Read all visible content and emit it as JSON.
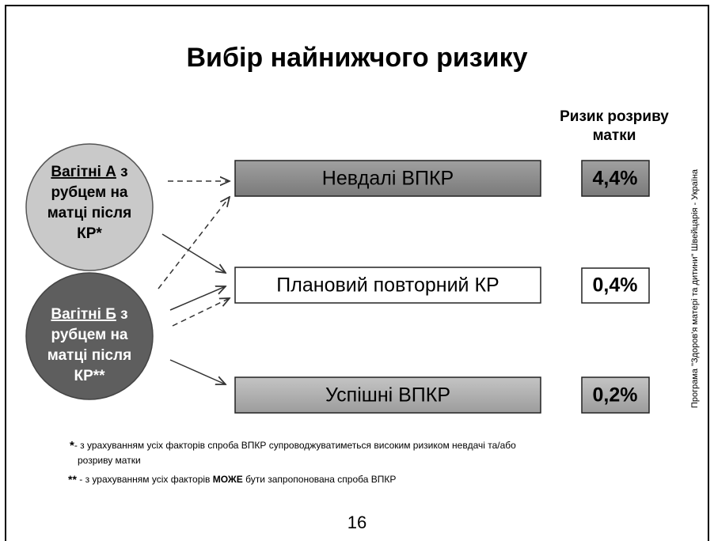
{
  "title": "Вибір найнижчого ризику",
  "risk_header": [
    "Ризик розриву",
    "матки"
  ],
  "groups": [
    {
      "underlined": "Вагітні А",
      "lines": [
        " з",
        "рубцем на",
        "матці після",
        "КР*"
      ]
    },
    {
      "underlined": "Вагітні Б",
      "lines": [
        " з",
        "рубцем на",
        "матці після",
        "КР**"
      ]
    }
  ],
  "outcomes": [
    {
      "label": "Невдалі ВПКР",
      "risk": "4,4%"
    },
    {
      "label": "Плановий повторний КР",
      "risk": "0,4%"
    },
    {
      "label": "Успішні ВПКР",
      "risk": "0,2%"
    }
  ],
  "footnotes": [
    {
      "marker": "*",
      "lines": [
        "- з урахуванням усіх факторів спроба ВПКР супроводжуватиметься високим ризиком невдачі та/або",
        "розриву матки"
      ]
    },
    {
      "marker": "**",
      "before": " - з урахуванням усіх факторів ",
      "bold": "МОЖЕ",
      "after": " бути запропонована спроба ВПКР"
    }
  ],
  "side_note": "Програма \"Здоров'я матері та дитини\" Швейцарія - Україна",
  "page_number": "16"
}
